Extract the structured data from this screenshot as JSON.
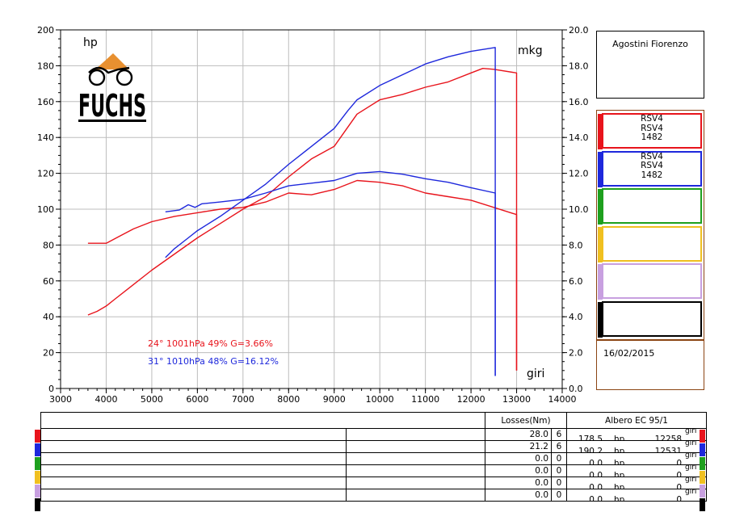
{
  "chart_data": {
    "type": "line",
    "x_axis": {
      "min": 3000,
      "max": 14000,
      "ticks": [
        3000,
        4000,
        5000,
        6000,
        7000,
        8000,
        9000,
        10000,
        11000,
        12000,
        13000,
        14000
      ],
      "label": "giri"
    },
    "y_left": {
      "min": 0,
      "max": 200,
      "ticks": [
        0,
        20,
        40,
        60,
        80,
        100,
        120,
        140,
        160,
        180,
        200
      ],
      "label": "hp"
    },
    "y_right": {
      "min": 0.0,
      "max": 20.0,
      "ticks": [
        "0.0",
        "2.0",
        "4.0",
        "6.0",
        "8.0",
        "10.0",
        "12.0",
        "14.0",
        "16.0",
        "18.0",
        "20.0"
      ],
      "label": "mkg"
    },
    "grid": true,
    "series": [
      {
        "name": "RSV4 RSV4 1482 (hp)",
        "color": "#e8141c",
        "axis": "left",
        "x": [
          3600,
          3800,
          4000,
          4200,
          4500,
          5000,
          5500,
          6000,
          6500,
          7000,
          7500,
          8000,
          8500,
          9000,
          9500,
          10000,
          10500,
          11000,
          11500,
          12000,
          12258,
          12500,
          13000,
          13000
        ],
        "y": [
          41,
          43,
          46,
          50,
          56,
          66,
          75,
          84,
          92,
          100,
          107,
          118,
          128,
          135,
          153,
          161,
          164,
          168,
          171,
          176,
          178.5,
          178,
          176,
          10
        ]
      },
      {
        "name": "RSV4 RSV4 1482 (mkg)",
        "color": "#e8141c",
        "axis": "right",
        "x": [
          3600,
          3800,
          4000,
          4300,
          4600,
          5000,
          5500,
          6000,
          6500,
          7000,
          7500,
          8000,
          8500,
          9000,
          9500,
          10000,
          10500,
          11000,
          11500,
          12000,
          12500,
          13000,
          13000
        ],
        "y": [
          8.1,
          8.1,
          8.1,
          8.5,
          8.9,
          9.3,
          9.6,
          9.8,
          10.0,
          10.1,
          10.4,
          10.9,
          10.8,
          11.1,
          11.6,
          11.5,
          11.3,
          10.9,
          10.7,
          10.5,
          10.1,
          9.7,
          1.0
        ]
      },
      {
        "name": "RSV4 RSV4 1482 (hp)",
        "color": "#1e28dc",
        "axis": "left",
        "x": [
          5300,
          5500,
          5800,
          6000,
          6500,
          7000,
          7500,
          8000,
          8500,
          9000,
          9300,
          9500,
          10000,
          10500,
          11000,
          11500,
          12000,
          12531,
          12531
        ],
        "y": [
          73,
          78,
          84,
          88,
          96,
          105,
          114,
          125,
          135,
          145,
          155,
          161,
          169,
          175,
          181,
          185,
          188,
          190.2,
          7
        ]
      },
      {
        "name": "RSV4 RSV4 1482 (mkg)",
        "color": "#1e28dc",
        "axis": "right",
        "x": [
          5300,
          5600,
          5800,
          5950,
          6100,
          6500,
          7000,
          7500,
          8000,
          8500,
          9000,
          9500,
          10000,
          10500,
          11000,
          11500,
          12000,
          12531,
          12531
        ],
        "y": [
          9.85,
          9.95,
          10.25,
          10.1,
          10.3,
          10.4,
          10.55,
          10.9,
          11.3,
          11.45,
          11.6,
          12.0,
          12.1,
          11.95,
          11.7,
          11.5,
          11.2,
          10.9,
          0.7
        ]
      }
    ]
  },
  "header": {
    "owner": "Agostini Fiorenzo",
    "logo_text": "FUCHS"
  },
  "conditions": [
    {
      "text": "24°  1001hPa  49%    G=3.66%",
      "color": "#e8141c"
    },
    {
      "text": "31°  1010hPa  48%    G=16.12%",
      "color": "#1e28dc"
    }
  ],
  "legend": [
    {
      "color": "#e8141c",
      "line1": "RSV4",
      "line2": "RSV4",
      "line3": "1482"
    },
    {
      "color": "#1e28dc",
      "line1": "RSV4",
      "line2": "RSV4",
      "line3": "1482"
    },
    {
      "color": "#1ea01e",
      "line1": "",
      "line2": "",
      "line3": ""
    },
    {
      "color": "#f0c020",
      "line1": "",
      "line2": "",
      "line3": ""
    },
    {
      "color": "#c8a0e0",
      "line1": "",
      "line2": "",
      "line3": ""
    },
    {
      "color": "#000000",
      "line1": "",
      "line2": "",
      "line3": ""
    }
  ],
  "date": "16/02/2015",
  "table": {
    "losses_header": "Losses(Nm)",
    "albero_header": "Albero EC 95/1",
    "unit_hp": "hp",
    "unit_giri": "giri",
    "rows": [
      {
        "color": "#e8141c",
        "loss": "28.0",
        "n": "6",
        "hp": "178.5",
        "giri": "12258"
      },
      {
        "color": "#1e28dc",
        "loss": "21.2",
        "n": "6",
        "hp": "190.2",
        "giri": "12531"
      },
      {
        "color": "#1ea01e",
        "loss": "0.0",
        "n": "0",
        "hp": "0.0",
        "giri": "0"
      },
      {
        "color": "#f0c020",
        "loss": "0.0",
        "n": "0",
        "hp": "0.0",
        "giri": "0"
      },
      {
        "color": "#c8a0e0",
        "loss": "0.0",
        "n": "0",
        "hp": "0.0",
        "giri": "0"
      },
      {
        "color": "#000000",
        "loss": "0.0",
        "n": "0",
        "hp": "0.0",
        "giri": "0"
      }
    ]
  }
}
